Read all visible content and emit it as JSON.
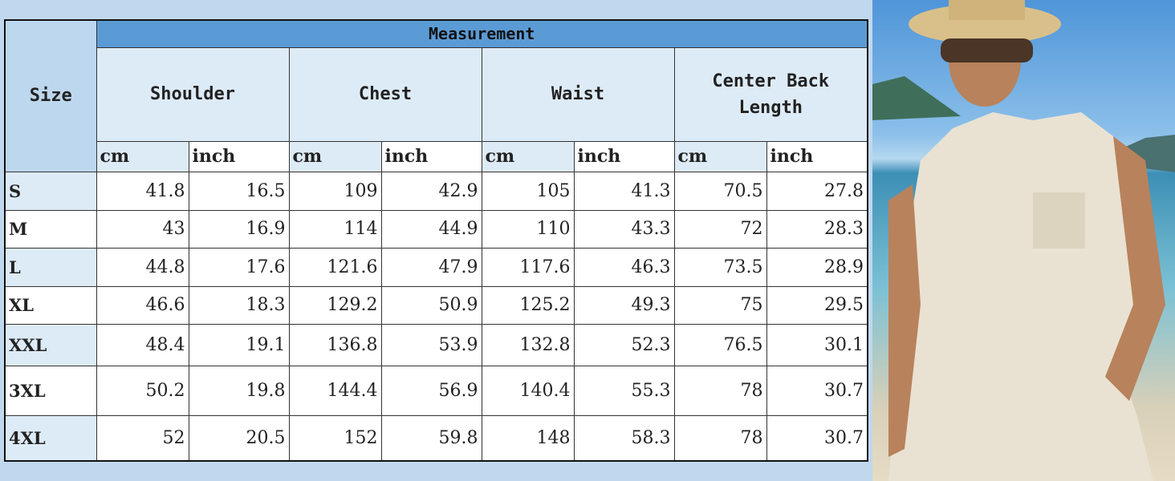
{
  "header": {
    "size": "Size",
    "measurement": "Measurement"
  },
  "groups": [
    "Shoulder",
    "Chest",
    "Waist",
    "Center Back Length"
  ],
  "units": {
    "cm": "cm",
    "inch": "inch"
  },
  "rows": [
    {
      "size": "S",
      "values": [
        "41.8",
        "16.5",
        "109",
        "42.9",
        "105",
        "41.3",
        "70.5",
        "27.8"
      ]
    },
    {
      "size": "M",
      "values": [
        "43",
        "16.9",
        "114",
        "44.9",
        "110",
        "43.3",
        "72",
        "28.3"
      ]
    },
    {
      "size": "L",
      "values": [
        "44.8",
        "17.6",
        "121.6",
        "47.9",
        "117.6",
        "46.3",
        "73.5",
        "28.9"
      ]
    },
    {
      "size": "XL",
      "values": [
        "46.6",
        "18.3",
        "129.2",
        "50.9",
        "125.2",
        "49.3",
        "75",
        "29.5"
      ]
    },
    {
      "size": "XXL",
      "values": [
        "48.4",
        "19.1",
        "136.8",
        "53.9",
        "132.8",
        "52.3",
        "76.5",
        "30.1"
      ]
    },
    {
      "size": "3XL",
      "values": [
        "50.2",
        "19.8",
        "144.4",
        "56.9",
        "140.4",
        "55.3",
        "78",
        "30.7"
      ]
    },
    {
      "size": "4XL",
      "values": [
        "52",
        "20.5",
        "152",
        "59.8",
        "148",
        "58.3",
        "78",
        "30.7"
      ]
    }
  ],
  "colors": {
    "background": "#c0d8ee",
    "header": "#5b9bd5",
    "light": "#ddebf7"
  }
}
